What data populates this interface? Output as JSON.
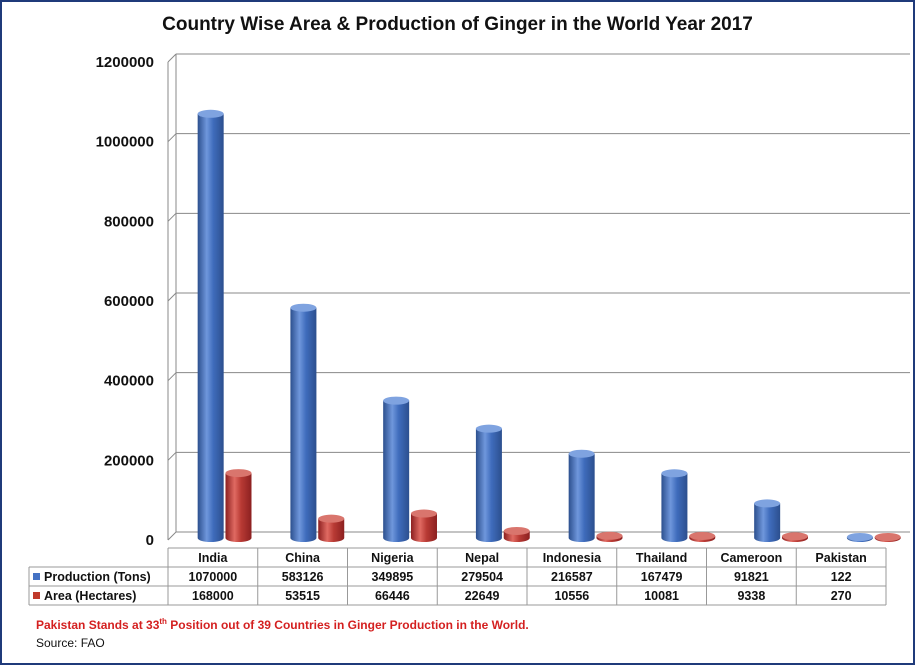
{
  "chart_data": {
    "type": "bar",
    "title": "Country Wise Area & Production of Ginger in the World Year 2017",
    "categories": [
      "India",
      "China",
      "Nigeria",
      "Nepal",
      "Indonesia",
      "Thailand",
      "Cameroon",
      "Pakistan"
    ],
    "series": [
      {
        "name": "Production (Tons)",
        "color": "#4472c4",
        "values": [
          1070000,
          583126,
          349895,
          279504,
          216587,
          167479,
          91821,
          122
        ]
      },
      {
        "name": "Area (Hectares)",
        "color": "#c0392b",
        "values": [
          168000,
          53515,
          66446,
          22649,
          10556,
          10081,
          9338,
          270
        ]
      }
    ],
    "ylim": [
      0,
      1200000
    ],
    "yticks": [
      0,
      200000,
      400000,
      600000,
      800000,
      1000000,
      1200000
    ],
    "grid": true,
    "legend": "data-table",
    "note_prefix": "Pakistan Stands at 33",
    "note_sup": "th",
    "note_suffix": " Position out of 39 Countries in Ginger Production in the World.",
    "source": "Source: FAO"
  }
}
